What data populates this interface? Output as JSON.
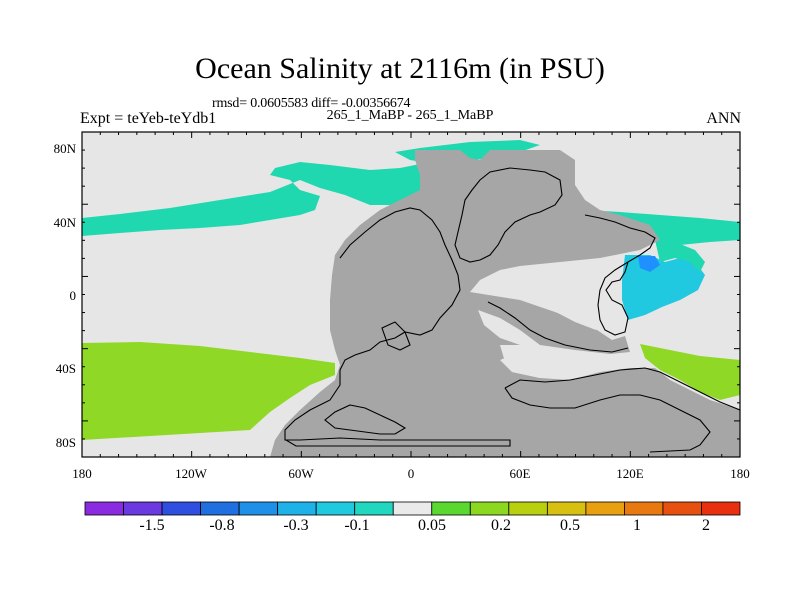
{
  "title": "Ocean Salinity at 2116m (in PSU)",
  "stats_line": "rmsd= 0.0605583 diff= -0.00356674",
  "left_label": "Expt = teYeb-teYdb1",
  "center_label": "265_1_MaBP - 265_1_MaBP",
  "right_label": "ANN",
  "lat_ticks": [
    "80N",
    "40N",
    "0",
    "40S",
    "80S"
  ],
  "lon_ticks": [
    "180",
    "120W",
    "60W",
    "0",
    "60E",
    "120E",
    "180"
  ],
  "colorbar": {
    "colors": [
      "#8a2be2",
      "#6a3ae0",
      "#2f4fe0",
      "#1f6fe0",
      "#1e90e8",
      "#1fb2e8",
      "#20c8e0",
      "#20d8c0",
      "#eaeaea",
      "#5ad830",
      "#8cd820",
      "#b8d010",
      "#d8c010",
      "#e8a010",
      "#e87810",
      "#e85010",
      "#e83010"
    ],
    "labels": [
      "-1.5",
      "-0.8",
      "-0.3",
      "-0.1",
      "0.05",
      "0.2",
      "0.5",
      "1",
      "2"
    ]
  },
  "colors": {
    "land": "#a6a6a6",
    "ocean_neutral": "#e6e6e6",
    "teal": "#20d8b0",
    "green": "#8fd826",
    "blue": "#1e90ff",
    "cyan": "#20c8e0"
  }
}
